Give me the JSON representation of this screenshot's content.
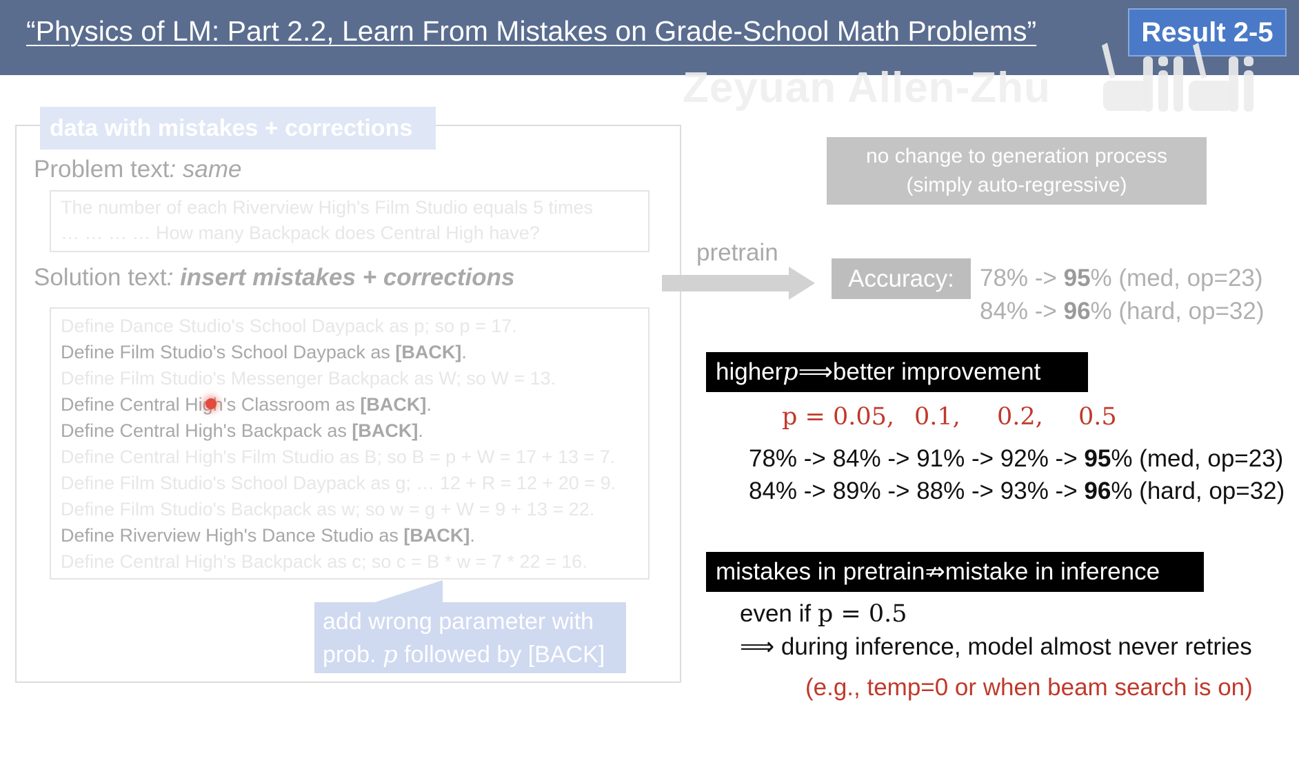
{
  "header": {
    "title": "“Physics of LM: Part 2.2, Learn From Mistakes on Grade-School Math Problems”",
    "badge": "Result 2-5",
    "watermark": "Zeyuan Allen-Zhu",
    "logo": "bilibili"
  },
  "left": {
    "tag": "data with mistakes + corrections",
    "problem_label_prefix": "Problem text",
    "problem_label_suffix": ": same",
    "problem_lines": [
      "The number of each Riverview High's Film Studio equals 5 times",
      "… … … … How many Backpack does Central High have?"
    ],
    "solution_label_prefix": "Solution text",
    "solution_label_colon": ": ",
    "solution_label_emph": "insert mistakes + corrections",
    "solution_lines": [
      {
        "text": "Define Dance Studio's School Daypack as p; so p = 17.",
        "back": "",
        "end": "",
        "faint": true
      },
      {
        "text": "Define Film Studio's School Daypack as ",
        "back": "[BACK]",
        "end": ".",
        "faint": false
      },
      {
        "text": "Define Film Studio's Messenger Backpack as W; so W = 13.",
        "back": "",
        "end": "",
        "faint": true
      },
      {
        "text": "Define Central High's Classroom as ",
        "back": "[BACK]",
        "end": ".",
        "faint": false
      },
      {
        "text": "Define Central High's Backpack as ",
        "back": "[BACK]",
        "end": ".",
        "faint": false
      },
      {
        "text": "Define Central High's Film Studio as B; so B = p + W = 17 + 13 = 7.",
        "back": "",
        "end": "",
        "faint": true
      },
      {
        "text": "Define Film Studio's School Daypack as g; … 12 + R = 12 + 20 = 9.",
        "back": "",
        "end": "",
        "faint": true
      },
      {
        "text": "Define Film Studio's Backpack as w; so w = g + W = 9 + 13 = 22.",
        "back": "",
        "end": "",
        "faint": true
      },
      {
        "text": "Define Riverview High's Dance Studio as ",
        "back": "[BACK]",
        "end": ".",
        "faint": false
      },
      {
        "text": "Define Central High's Backpack as c; so c = B * w = 7 * 22 = 16.",
        "back": "",
        "end": "",
        "faint": true
      }
    ],
    "callout_line1": "add wrong parameter with",
    "callout_line2_pre": "prob. ",
    "callout_var": "p",
    "callout_line2_post": " followed by [BACK]"
  },
  "right": {
    "no_change_1": "no change to generation process",
    "no_change_2": "(simply auto-regressive)",
    "pretrain": "pretrain",
    "accuracy_label": "Accuracy:",
    "acc1_pre": "78% -> ",
    "acc1_bold": "95",
    "acc1_post": "% (med, op=23)",
    "acc2_pre": "84% -> ",
    "acc2_bold": "96",
    "acc2_post": "% (hard, op=32)",
    "head1_pre": "higher ",
    "head1_var": "p",
    "head1_arrow": " ⟹ ",
    "head1_post": "better improvement",
    "p_values": [
      "p = 0.05,",
      "0.1,",
      "0.2,",
      "0.5"
    ],
    "row1_pre": "78% -> 84% -> 91% -> 92% -> ",
    "row1_bold": "95",
    "row1_post": "% (med, op=23)",
    "row2_pre": "84% -> 89% -> 88% -> 93% -> ",
    "row2_bold": "96",
    "row2_post": "% (hard, op=32)",
    "head2_pre": "mistakes in pretrain ",
    "head2_arrow": "⇏",
    "head2_post": " mistake in inference",
    "even_pre": "even if ",
    "even_math": "p = 0.5",
    "during": "⟹ during inference, model almost never retries",
    "eg": "(e.g., temp=0 or when beam search is on)"
  },
  "colors": {
    "header_bg": "#5a6d8f",
    "badge_bg": "#4a7ac7",
    "accent_red": "#c0392b"
  }
}
